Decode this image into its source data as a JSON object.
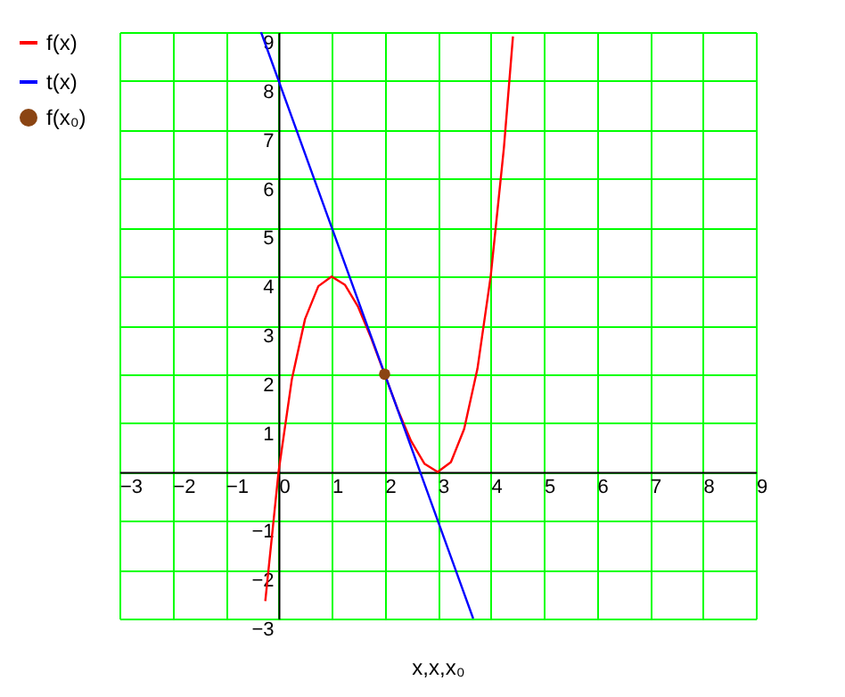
{
  "chart_data": {
    "type": "line",
    "xlabel": "x,x,x₀",
    "xlim": [
      -3,
      9
    ],
    "ylim": [
      -3,
      9
    ],
    "xticks": [
      -3,
      -2,
      -1,
      0,
      1,
      2,
      3,
      4,
      5,
      6,
      7,
      8,
      9
    ],
    "yticks": [
      -3,
      -2,
      -1,
      {
        "value": 0,
        "label": null
      },
      1,
      2,
      3,
      4,
      5,
      6,
      7,
      8,
      9
    ],
    "grid": true,
    "legend": "left",
    "series": [
      {
        "name": "f(x)",
        "color": "#ff0000",
        "x": [
          -0.25,
          0,
          0.25,
          0.5,
          0.75,
          1,
          1.25,
          1.5,
          1.75,
          2,
          2.25,
          2.5,
          2.75,
          3,
          3.25,
          3.5,
          3.75,
          4,
          4.25,
          4.42
        ],
        "values": [
          -2.64,
          0,
          1.89,
          3.13,
          3.8,
          4,
          3.83,
          3.38,
          2.73,
          2,
          1.27,
          0.63,
          0.17,
          0,
          0.2,
          0.88,
          2.11,
          4,
          6.64,
          8.91
        ]
      },
      {
        "name": "t(x)",
        "color": "#0000ff",
        "x": [
          -0.33,
          3.67
        ],
        "values": [
          9,
          -3
        ]
      },
      {
        "name": "f(x₀)",
        "type": "scatter",
        "marker": "circle",
        "color": "#8b4513",
        "x": [
          2
        ],
        "values": [
          2
        ]
      }
    ]
  }
}
